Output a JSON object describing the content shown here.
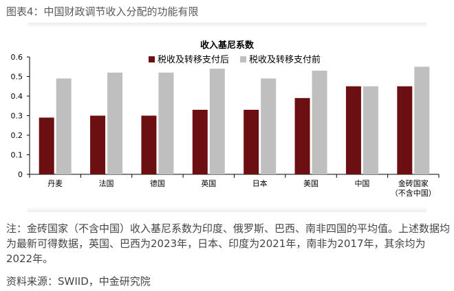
{
  "figure_title": "图表4：中国财政调节收入分配的功能有限",
  "chart_data": {
    "type": "bar",
    "title": "收入基尼系数",
    "categories": [
      "丹麦",
      "法国",
      "德国",
      "英国",
      "日本",
      "美国",
      "中国",
      "金砖国家\n（不含中国）"
    ],
    "series": [
      {
        "name": "税收及转移支付后",
        "color": "#6b0f12",
        "values": [
          0.29,
          0.3,
          0.3,
          0.33,
          0.33,
          0.39,
          0.45,
          0.45
        ]
      },
      {
        "name": "税收及转移支付前",
        "color": "#bfbfbf",
        "values": [
          0.49,
          0.52,
          0.52,
          0.54,
          0.49,
          0.53,
          0.45,
          0.55
        ]
      }
    ],
    "yticks": [
      "0",
      "0.1",
      "0.2",
      "0.3",
      "0.4",
      "0.5",
      "0.6"
    ],
    "ylim": [
      0,
      0.6
    ],
    "grid": false,
    "legend_position": "top"
  },
  "note": "注：金砖国家（不含中国）收入基尼系数为印度、俄罗斯、巴西、南非四国的平均值。上述数据均为最新可得数据，英国、巴西为2023年，日本、印度为2021年，南非为2017年，其余均为2022年。",
  "source": "资料来源：SWIID，中金研究院"
}
